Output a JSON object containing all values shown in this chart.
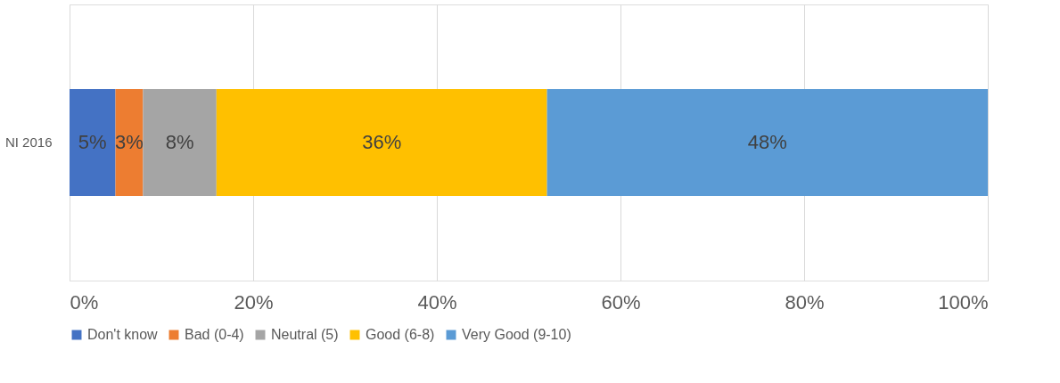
{
  "chart_data": {
    "type": "bar",
    "orientation": "horizontal",
    "stacked": true,
    "categories": [
      "NI 2016"
    ],
    "series": [
      {
        "name": "Don't know",
        "color": "#4472c4",
        "values": [
          5
        ],
        "value_labels": [
          "5%"
        ]
      },
      {
        "name": "Bad (0-4)",
        "color": "#ed7d31",
        "values": [
          3
        ],
        "value_labels": [
          "3%"
        ]
      },
      {
        "name": "Neutral (5)",
        "color": "#a5a5a5",
        "values": [
          8
        ],
        "value_labels": [
          "8%"
        ]
      },
      {
        "name": "Good (6-8)",
        "color": "#ffc000",
        "values": [
          36
        ],
        "value_labels": [
          "36%"
        ]
      },
      {
        "name": "Very Good (9-10)",
        "color": "#5b9bd5",
        "values": [
          48
        ],
        "value_labels": [
          "48%"
        ]
      }
    ],
    "xlim": [
      0,
      100
    ],
    "xticks": [
      {
        "value": 0,
        "label": "0%"
      },
      {
        "value": 20,
        "label": "20%"
      },
      {
        "value": 40,
        "label": "40%"
      },
      {
        "value": 60,
        "label": "60%"
      },
      {
        "value": 80,
        "label": "80%"
      },
      {
        "value": 100,
        "label": "100%"
      }
    ],
    "grid": "x",
    "legend": "bottom"
  }
}
